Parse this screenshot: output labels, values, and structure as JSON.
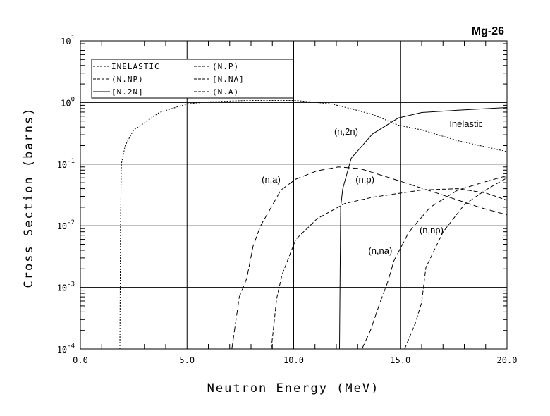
{
  "chart_data": {
    "type": "line",
    "title": "Mg-26",
    "xlabel": "Neutron Energy (MeV)",
    "ylabel": "Cross Section (barns)",
    "xlim": [
      0,
      20
    ],
    "ylim": [
      0.0001,
      10
    ],
    "yscale": "log",
    "grid": true,
    "legend_position": "top-left",
    "x_ticks": [
      "0.0",
      "5.0",
      "10.0",
      "15.0",
      "20.0"
    ],
    "x_tick_values": [
      0,
      5,
      10,
      15,
      20
    ],
    "y_ticks": [
      {
        "base": "10",
        "exp": "1",
        "v": 1
      },
      {
        "base": "10",
        "exp": "0",
        "v": 0
      },
      {
        "base": "10",
        "exp": "-1",
        "v": -1
      },
      {
        "base": "10",
        "exp": "-2",
        "v": -2
      },
      {
        "base": "10",
        "exp": "-3",
        "v": -3
      },
      {
        "base": "10",
        "exp": "-4",
        "v": -4
      }
    ],
    "series": [
      {
        "name": "INELASTIC",
        "legend": "INELASTIC",
        "annotation": "Inelastic",
        "ann_at": [
          17.3,
          0.4
        ],
        "dash": "2,2",
        "x": [
          1.85,
          1.88,
          1.92,
          2.1,
          2.5,
          2.85,
          3.7,
          5.0,
          6.1,
          7.8,
          10.1,
          11.75,
          12.7,
          13.7,
          14.9,
          16.0,
          17.7,
          20.0
        ],
        "y": [
          0.0001,
          0.01,
          0.1,
          0.2,
          0.36,
          0.43,
          0.69,
          0.95,
          1.03,
          1.08,
          1.08,
          0.95,
          0.79,
          0.64,
          0.43,
          0.36,
          0.24,
          0.16
        ]
      },
      {
        "name": "(N,2N)",
        "legend": "[N.2N]",
        "annotation": "(n,2n)",
        "ann_at": [
          11.9,
          0.3
        ],
        "dash": "",
        "x": [
          12.15,
          12.2,
          12.3,
          12.7,
          13.7,
          14.9,
          16.0,
          17.7,
          20.0
        ],
        "y": [
          0.0001,
          0.02,
          0.04,
          0.125,
          0.31,
          0.56,
          0.69,
          0.75,
          0.83
        ]
      },
      {
        "name": "(N,NA)",
        "legend": "[N.NA]",
        "annotation": "(n,na)",
        "ann_at": [
          13.5,
          0.0035
        ],
        "dash": "8,4",
        "x": [
          13.2,
          13.6,
          14.05,
          14.4,
          14.7,
          15.4,
          16.4,
          17.7,
          19.0,
          20.0
        ],
        "y": [
          0.0001,
          0.0002,
          0.00057,
          0.0012,
          0.0027,
          0.0079,
          0.02,
          0.038,
          0.052,
          0.065
        ]
      },
      {
        "name": "(N,NP)",
        "legend": "(N.NP)",
        "annotation": "(n,np)",
        "ann_at": [
          15.9,
          0.0075
        ],
        "dash": "6,3",
        "x": [
          15.2,
          15.7,
          16.0,
          16.2,
          17.0,
          18.0,
          19.0,
          20.0
        ],
        "y": [
          0.0001,
          0.00026,
          0.00057,
          0.0021,
          0.0079,
          0.022,
          0.038,
          0.06
        ]
      },
      {
        "name": "(N,P)",
        "legend": "(N.P)",
        "annotation": "(n,p)",
        "ann_at": [
          12.9,
          0.05
        ],
        "dash": "6,3",
        "x": [
          8.95,
          9.2,
          9.45,
          10.1,
          11.1,
          12.4,
          13.7,
          16.0,
          17.7,
          19.0,
          20.0
        ],
        "y": [
          0.0001,
          0.00065,
          0.0016,
          0.006,
          0.013,
          0.023,
          0.029,
          0.038,
          0.04,
          0.034,
          0.026
        ]
      },
      {
        "name": "(N,A)",
        "legend": "(N.A)",
        "annotation": "(n,a)",
        "ann_at": [
          8.5,
          0.05
        ],
        "dash": "8,4",
        "x": [
          7.1,
          7.45,
          7.8,
          8.1,
          8.45,
          8.95,
          9.4,
          10.1,
          11.1,
          12.1,
          13.1,
          14.7,
          16.7,
          18.7,
          20.0
        ],
        "y": [
          0.0001,
          0.0007,
          0.0014,
          0.0047,
          0.01,
          0.02,
          0.038,
          0.057,
          0.078,
          0.09,
          0.085,
          0.057,
          0.034,
          0.02,
          0.015
        ]
      }
    ],
    "legend_order": [
      0,
      3,
      1,
      4,
      2,
      5
    ]
  }
}
